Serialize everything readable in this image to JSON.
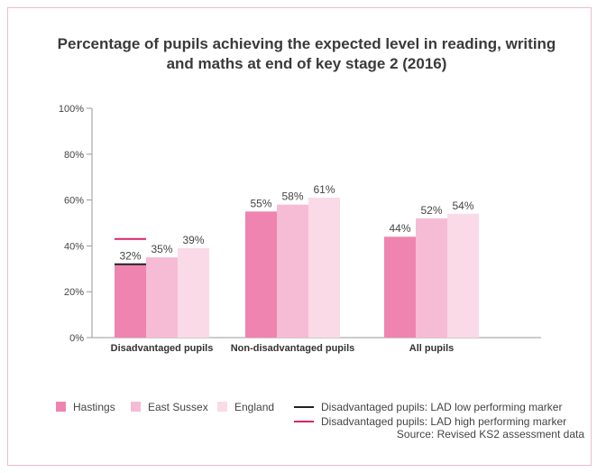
{
  "chart_data": {
    "type": "bar",
    "title": "Percentage of pupils achieving the expected level in reading, writing and maths at end of key stage 2 (2016)",
    "categories": [
      "Disadvantaged pupils",
      "Non-disadvantaged pupils",
      "All pupils"
    ],
    "series": [
      {
        "name": "Hastings",
        "values": [
          32,
          55,
          44
        ],
        "labels": [
          "32%",
          "55%",
          "44%"
        ],
        "color": "#ef84b0"
      },
      {
        "name": "East Sussex",
        "values": [
          35,
          58,
          52
        ],
        "labels": [
          "35%",
          "58%",
          "52%"
        ],
        "color": "#f6bcd5"
      },
      {
        "name": "England",
        "values": [
          39,
          61,
          54
        ],
        "labels": [
          "39%",
          "61%",
          "54%"
        ],
        "color": "#fadaE6"
      }
    ],
    "markers": [
      {
        "name": "Disadvantaged pupils: LAD low performing marker",
        "category": "Disadvantaged pupils",
        "value": 32,
        "color": "#222222"
      },
      {
        "name": "Disadvantaged pupils: LAD high performing marker",
        "category": "Disadvantaged pupils",
        "value": 43,
        "color": "#d6246e"
      }
    ],
    "yticks": [
      "0%",
      "20%",
      "40%",
      "60%",
      "80%",
      "100%"
    ],
    "ylim": [
      0,
      100
    ],
    "grid": false,
    "legend_position": "bottom",
    "source": "Source: Revised KS2 assessment data"
  }
}
